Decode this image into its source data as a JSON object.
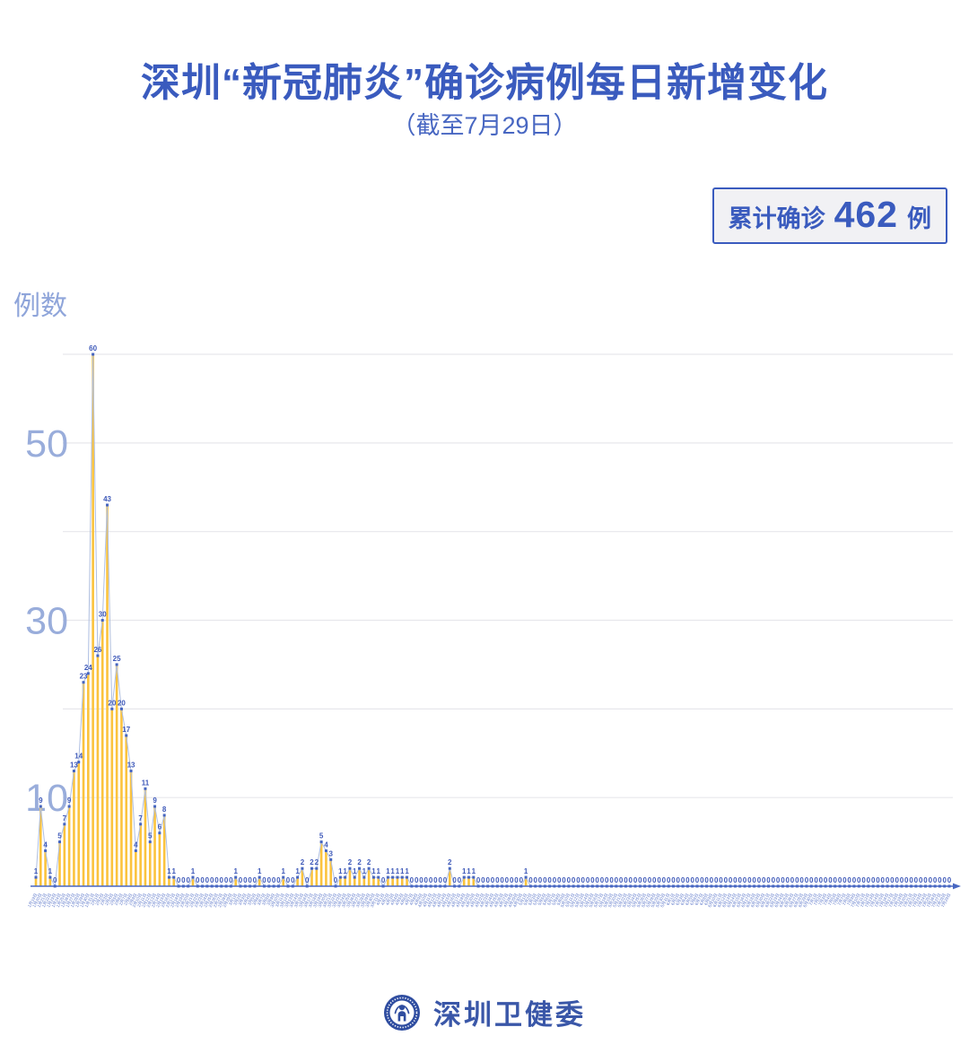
{
  "header": {
    "title": "深圳“新冠肺炎”确诊病例每日新增变化",
    "subtitle": "（截至7月29日）"
  },
  "badge": {
    "prefix": "累计确诊",
    "value": "462",
    "suffix": "例"
  },
  "footer": {
    "brand": "深圳卫健委",
    "logo_icon": "shenzhen-health-commission-emblem"
  },
  "chart_data": {
    "type": "bar",
    "title": "深圳“新冠肺炎”确诊病例每日新增变化（截至7月29日）",
    "ylabel": "例数",
    "xlabel": "",
    "ylim": [
      0,
      62
    ],
    "grid": true,
    "gridline_values": [
      10,
      20,
      30,
      40,
      50,
      60
    ],
    "ytick_labels": [
      50,
      30,
      10
    ],
    "x_start": "1月19日",
    "x_end": "7月29日",
    "total_confirmed": 462,
    "colors": {
      "bar": "#fbc33d",
      "line": "#aebfe3",
      "marker": "#4565c0",
      "data_label": "#3e59b9",
      "axis": "#4867c2",
      "gridline": "#e7e7ec",
      "ytick": "#99addb",
      "xtick": "#5b76c9"
    },
    "categories": [
      "1月19日",
      "1月20日",
      "1月21日",
      "1月22日",
      "1月23日",
      "1月24日",
      "1月25日",
      "1月26日",
      "1月27日",
      "1月28日",
      "1月29日",
      "1月30日",
      "1月31日",
      "2月1日",
      "2月2日",
      "2月3日",
      "2月4日",
      "2月5日",
      "2月6日",
      "2月7日",
      "2月8日",
      "2月9日",
      "2月10日",
      "2月11日",
      "2月12日",
      "2月13日",
      "2月14日",
      "2月15日",
      "2月16日",
      "2月17日",
      "2月18日",
      "2月19日",
      "2月20日",
      "2月21日",
      "2月22日",
      "2月23日",
      "2月24日",
      "2月25日",
      "2月26日",
      "2月27日",
      "2月28日",
      "2月29日",
      "3月1日",
      "3月2日",
      "3月3日",
      "3月4日",
      "3月5日",
      "3月6日",
      "3月7日",
      "3月8日",
      "3月9日",
      "3月10日",
      "3月11日",
      "3月12日",
      "3月13日",
      "3月14日",
      "3月15日",
      "3月16日",
      "3月17日",
      "3月18日",
      "3月19日",
      "3月20日",
      "3月21日",
      "3月22日",
      "3月23日",
      "3月24日",
      "3月25日",
      "3月26日",
      "3月27日",
      "3月28日",
      "3月29日",
      "3月30日",
      "3月31日",
      "4月1日",
      "4月2日",
      "4月3日",
      "4月4日",
      "4月5日",
      "4月6日",
      "4月7日",
      "4月8日",
      "4月9日",
      "4月10日",
      "4月11日",
      "4月12日",
      "4月13日",
      "4月14日",
      "4月15日",
      "4月16日",
      "4月17日",
      "4月18日",
      "4月19日",
      "4月20日",
      "4月21日",
      "4月22日",
      "4月23日",
      "4月24日",
      "4月25日",
      "4月26日",
      "4月27日",
      "4月28日",
      "4月29日",
      "4月30日",
      "5月1日",
      "5月2日",
      "5月3日",
      "5月4日",
      "5月5日",
      "5月6日",
      "5月7日",
      "5月8日",
      "5月9日",
      "5月10日",
      "5月11日",
      "5月12日",
      "5月13日",
      "5月14日",
      "5月15日",
      "5月16日",
      "5月17日",
      "5月18日",
      "5月19日",
      "5月20日",
      "5月21日",
      "5月22日",
      "5月23日",
      "5月24日",
      "5月25日",
      "5月26日",
      "5月27日",
      "5月28日",
      "5月29日",
      "5月30日",
      "5月31日",
      "6月1日",
      "6月2日",
      "6月3日",
      "6月4日",
      "6月5日",
      "6月6日",
      "6月7日",
      "6月8日",
      "6月9日",
      "6月10日",
      "6月11日",
      "6月12日",
      "6月13日",
      "6月14日",
      "6月15日",
      "6月16日",
      "6月17日",
      "6月18日",
      "6月19日",
      "6月20日",
      "6月21日",
      "6月22日",
      "6月23日",
      "6月24日",
      "6月25日",
      "6月26日",
      "6月27日",
      "6月28日",
      "6月29日",
      "6月30日",
      "7月1日",
      "7月2日",
      "7月3日",
      "7月4日",
      "7月5日",
      "7月6日",
      "7月7日",
      "7月8日",
      "7月9日",
      "7月10日",
      "7月11日",
      "7月12日",
      "7月13日",
      "7月14日",
      "7月15日",
      "7月16日",
      "7月17日",
      "7月18日",
      "7月19日",
      "7月20日",
      "7月21日",
      "7月22日",
      "7月23日",
      "7月24日",
      "7月25日",
      "7月26日",
      "7月27日",
      "7月28日",
      "7月29日"
    ],
    "values": [
      1,
      9,
      4,
      1,
      0,
      5,
      7,
      9,
      13,
      14,
      23,
      24,
      60,
      26,
      30,
      43,
      20,
      25,
      20,
      17,
      13,
      4,
      7,
      11,
      5,
      9,
      6,
      8,
      1,
      1,
      0,
      0,
      0,
      1,
      0,
      0,
      0,
      0,
      0,
      0,
      0,
      0,
      1,
      0,
      0,
      0,
      0,
      1,
      0,
      0,
      0,
      0,
      1,
      0,
      0,
      1,
      2,
      0,
      2,
      2,
      5,
      4,
      3,
      0,
      1,
      1,
      2,
      1,
      2,
      1,
      2,
      1,
      1,
      0,
      1,
      1,
      1,
      1,
      1,
      0,
      0,
      0,
      0,
      0,
      0,
      0,
      0,
      2,
      0,
      0,
      1,
      1,
      1,
      0,
      0,
      0,
      0,
      0,
      0,
      0,
      0,
      0,
      0,
      1,
      0,
      0,
      0,
      0,
      0,
      0,
      0,
      0,
      0,
      0,
      0,
      0,
      0,
      0,
      0,
      0,
      0,
      0,
      0,
      0,
      0,
      0,
      0,
      0,
      0,
      0,
      0,
      0,
      0,
      0,
      0,
      0,
      0,
      0,
      0,
      0,
      0,
      0,
      0,
      0,
      0,
      0,
      0,
      0,
      0,
      0,
      0,
      0,
      0,
      0,
      0,
      0,
      0,
      0,
      0,
      0,
      0,
      0,
      0,
      0,
      0,
      0,
      0,
      0,
      0,
      0,
      0,
      0,
      0,
      0,
      0,
      0,
      0,
      0,
      0,
      0,
      0,
      0,
      0,
      0,
      0,
      0,
      0,
      0,
      0,
      0,
      0,
      0,
      0
    ]
  }
}
